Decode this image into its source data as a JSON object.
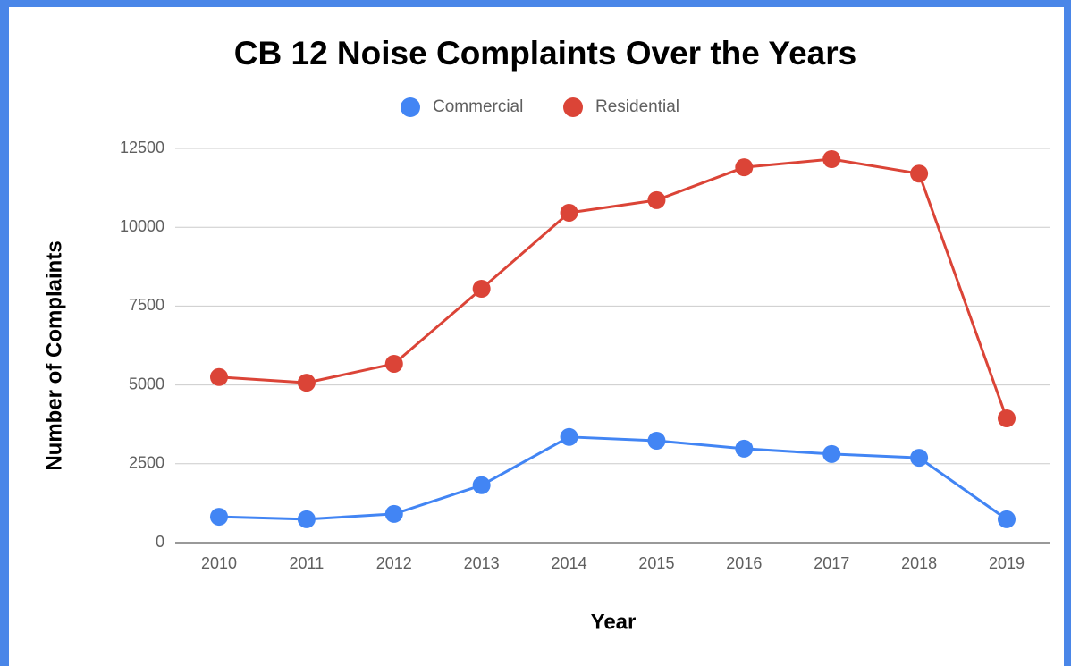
{
  "chart_data": {
    "type": "line",
    "title": "CB 12 Noise Complaints Over the Years",
    "x_label": "Year",
    "y_label": "Number of Complaints",
    "categories": [
      "2010",
      "2011",
      "2012",
      "2013",
      "2014",
      "2015",
      "2016",
      "2017",
      "2018",
      "2019"
    ],
    "series": [
      {
        "name": "Commercial",
        "color": "#4285f4",
        "values": [
          820,
          740,
          910,
          1820,
          3350,
          3230,
          2980,
          2810,
          2690,
          740
        ]
      },
      {
        "name": "Residential",
        "color": "#db4437",
        "values": [
          5250,
          5070,
          5670,
          8050,
          10460,
          10860,
          11900,
          12160,
          11700,
          3940
        ]
      }
    ],
    "ylim": [
      0,
      12500
    ],
    "yticks": [
      0,
      2500,
      5000,
      7500,
      10000,
      12500
    ],
    "grid": true,
    "legend": "top"
  }
}
